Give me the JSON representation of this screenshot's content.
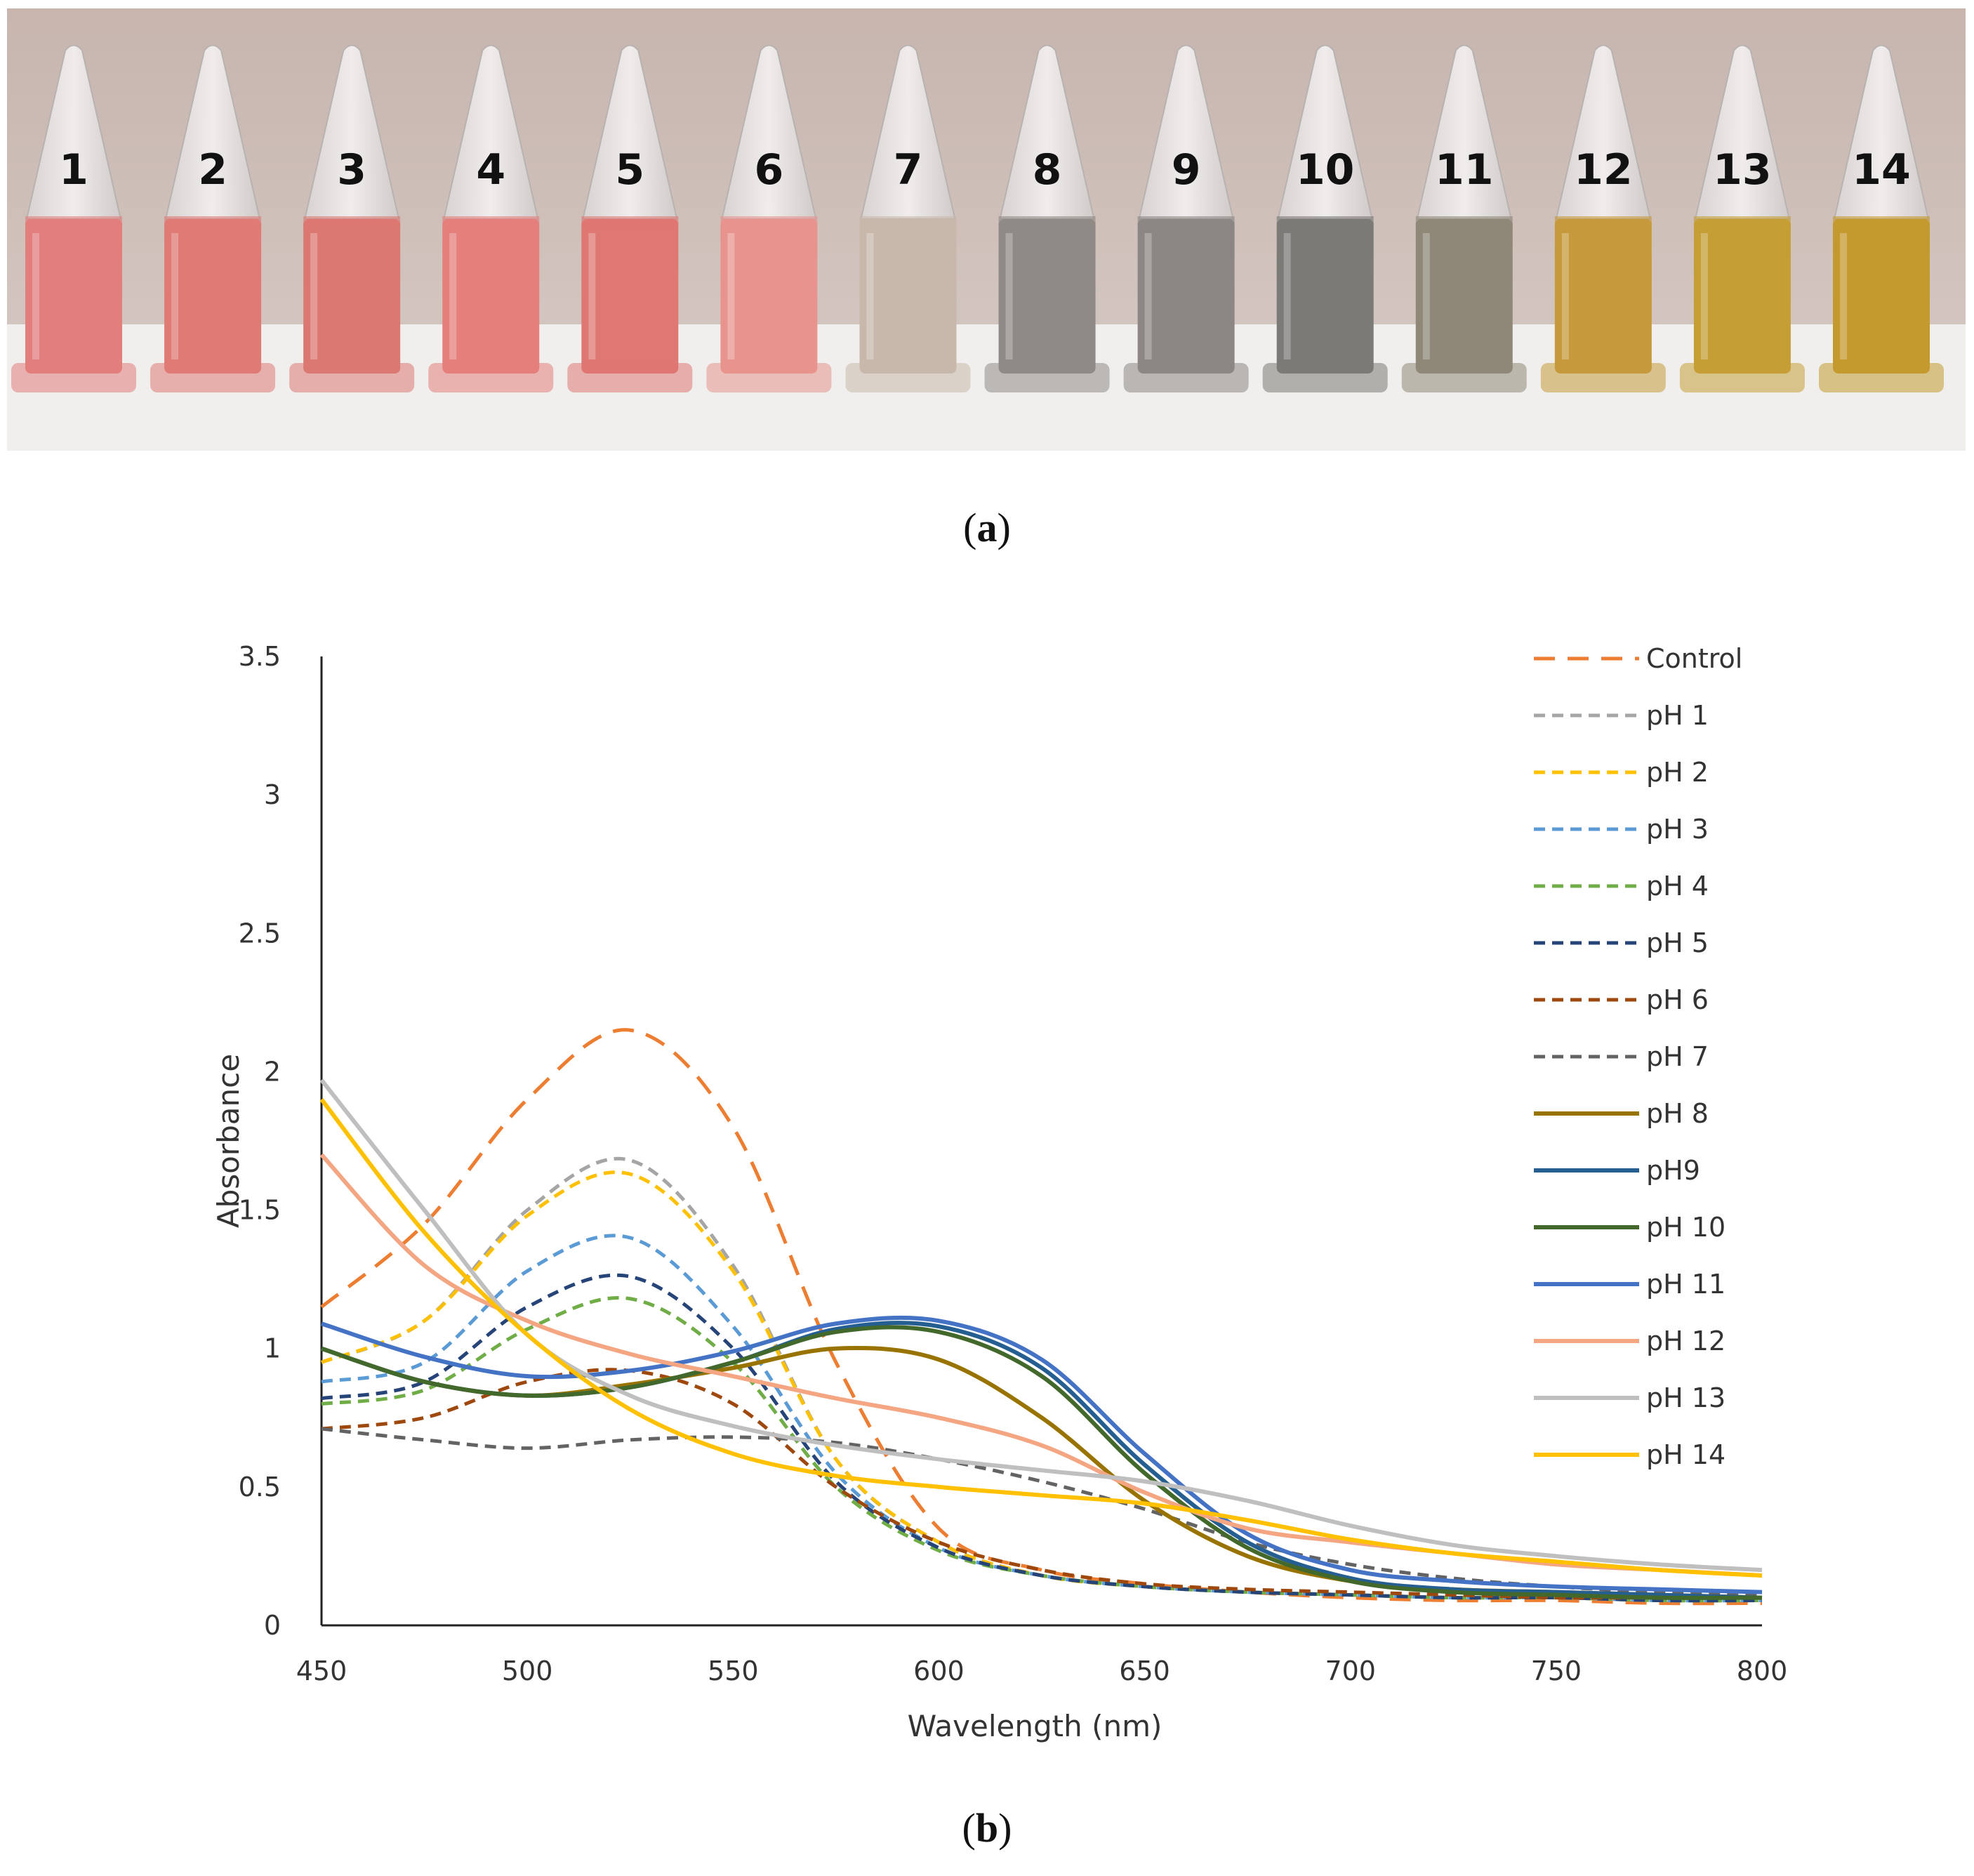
{
  "panel_a": {
    "label_open": "(",
    "label_letter": "a",
    "label_close": ")",
    "tubes": [
      {
        "number": "1",
        "liquid_color": "#e27e7c"
      },
      {
        "number": "2",
        "liquid_color": "#df7a74"
      },
      {
        "number": "3",
        "liquid_color": "#dc7872"
      },
      {
        "number": "4",
        "liquid_color": "#e47f7b"
      },
      {
        "number": "5",
        "liquid_color": "#df7772"
      },
      {
        "number": "6",
        "liquid_color": "#e8938e"
      },
      {
        "number": "7",
        "liquid_color": "#c8b8ab"
      },
      {
        "number": "8",
        "liquid_color": "#8f8a86"
      },
      {
        "number": "9",
        "liquid_color": "#8c8784"
      },
      {
        "number": "10",
        "liquid_color": "#7c7a77"
      },
      {
        "number": "11",
        "liquid_color": "#8f8879"
      },
      {
        "number": "12",
        "liquid_color": "#c69a3c"
      },
      {
        "number": "13",
        "liquid_color": "#c59f36"
      },
      {
        "number": "14",
        "liquid_color": "#c49a2f"
      }
    ]
  },
  "panel_b": {
    "label_open": "(",
    "label_letter": "b",
    "label_close": ")"
  },
  "chart_data": {
    "type": "line",
    "title": "",
    "xlabel": "Wavelength (nm)",
    "ylabel": "Absorbance",
    "xlim": [
      450,
      800
    ],
    "ylim": [
      0,
      3.5
    ],
    "xticks": [
      "450",
      "500",
      "550",
      "600",
      "650",
      "700",
      "750",
      "800"
    ],
    "yticks": [
      "0",
      "0.5",
      "1",
      "1.5",
      "2",
      "2.5",
      "3",
      "3.5"
    ],
    "grid": false,
    "legend_position": "right",
    "x": [
      450,
      475,
      500,
      525,
      550,
      575,
      600,
      625,
      650,
      675,
      700,
      725,
      750,
      775,
      800
    ],
    "series": [
      {
        "name": "Control",
        "color": "#ed7d31",
        "dash": "long",
        "values": [
          1.15,
          1.45,
          1.9,
          2.15,
          1.8,
          0.95,
          0.35,
          0.2,
          0.15,
          0.12,
          0.1,
          0.09,
          0.09,
          0.08,
          0.08
        ]
      },
      {
        "name": "pH 1",
        "color": "#a5a5a5",
        "dash": "short",
        "values": [
          0.95,
          1.1,
          1.5,
          1.68,
          1.3,
          0.6,
          0.3,
          0.18,
          0.14,
          0.12,
          0.11,
          0.1,
          0.1,
          0.09,
          0.09
        ]
      },
      {
        "name": "pH 2",
        "color": "#ffc000",
        "dash": "short",
        "values": [
          0.95,
          1.1,
          1.48,
          1.63,
          1.28,
          0.6,
          0.3,
          0.18,
          0.14,
          0.12,
          0.11,
          0.1,
          0.1,
          0.09,
          0.09
        ]
      },
      {
        "name": "pH 3",
        "color": "#5b9bd5",
        "dash": "short",
        "values": [
          0.88,
          0.95,
          1.28,
          1.4,
          1.08,
          0.55,
          0.28,
          0.18,
          0.14,
          0.12,
          0.11,
          0.1,
          0.1,
          0.09,
          0.09
        ]
      },
      {
        "name": "pH 4",
        "color": "#70ad47",
        "dash": "short",
        "values": [
          0.8,
          0.85,
          1.07,
          1.18,
          0.95,
          0.5,
          0.27,
          0.18,
          0.14,
          0.12,
          0.11,
          0.1,
          0.1,
          0.09,
          0.09
        ]
      },
      {
        "name": "pH 5",
        "color": "#264478",
        "dash": "short",
        "values": [
          0.82,
          0.88,
          1.15,
          1.26,
          1.0,
          0.52,
          0.28,
          0.18,
          0.14,
          0.12,
          0.11,
          0.1,
          0.1,
          0.09,
          0.09
        ]
      },
      {
        "name": "pH 6",
        "color": "#9e480e",
        "dash": "short",
        "values": [
          0.71,
          0.75,
          0.88,
          0.92,
          0.8,
          0.5,
          0.3,
          0.2,
          0.15,
          0.13,
          0.12,
          0.11,
          0.1,
          0.1,
          0.1
        ]
      },
      {
        "name": "pH 7",
        "color": "#636363",
        "dash": "short",
        "values": [
          0.71,
          0.67,
          0.64,
          0.67,
          0.68,
          0.66,
          0.6,
          0.52,
          0.42,
          0.3,
          0.22,
          0.17,
          0.14,
          0.12,
          0.11
        ]
      },
      {
        "name": "pH 8",
        "color": "#997300",
        "dash": "solid",
        "values": [
          1.0,
          0.88,
          0.83,
          0.87,
          0.93,
          1.0,
          0.96,
          0.75,
          0.45,
          0.25,
          0.16,
          0.13,
          0.12,
          0.11,
          0.1
        ]
      },
      {
        "name": "pH9",
        "color": "#255e91",
        "dash": "solid",
        "values": [
          1.0,
          0.88,
          0.83,
          0.86,
          0.95,
          1.07,
          1.08,
          0.93,
          0.58,
          0.3,
          0.17,
          0.13,
          0.12,
          0.11,
          0.1
        ]
      },
      {
        "name": "pH 10",
        "color": "#43682b",
        "dash": "solid",
        "values": [
          1.0,
          0.88,
          0.83,
          0.86,
          0.95,
          1.06,
          1.06,
          0.9,
          0.55,
          0.28,
          0.16,
          0.12,
          0.11,
          0.1,
          0.1
        ]
      },
      {
        "name": "pH 11",
        "color": "#4472c4",
        "dash": "solid",
        "values": [
          1.09,
          0.97,
          0.9,
          0.92,
          0.99,
          1.09,
          1.1,
          0.96,
          0.62,
          0.33,
          0.2,
          0.16,
          0.14,
          0.13,
          0.12
        ]
      },
      {
        "name": "pH 12",
        "color": "#f4a582",
        "dash": "solid",
        "values": [
          1.7,
          1.3,
          1.1,
          0.98,
          0.9,
          0.82,
          0.75,
          0.65,
          0.48,
          0.35,
          0.3,
          0.26,
          0.22,
          0.2,
          0.18
        ]
      },
      {
        "name": "pH 13",
        "color": "#bfbfbf",
        "dash": "solid",
        "values": [
          1.97,
          1.5,
          1.05,
          0.83,
          0.72,
          0.65,
          0.6,
          0.56,
          0.52,
          0.45,
          0.36,
          0.29,
          0.25,
          0.22,
          0.2
        ]
      },
      {
        "name": "pH 14",
        "color": "#ffc000",
        "dash": "solid",
        "values": [
          1.9,
          1.42,
          1.05,
          0.78,
          0.62,
          0.54,
          0.5,
          0.47,
          0.44,
          0.38,
          0.31,
          0.26,
          0.23,
          0.2,
          0.18
        ]
      }
    ]
  }
}
